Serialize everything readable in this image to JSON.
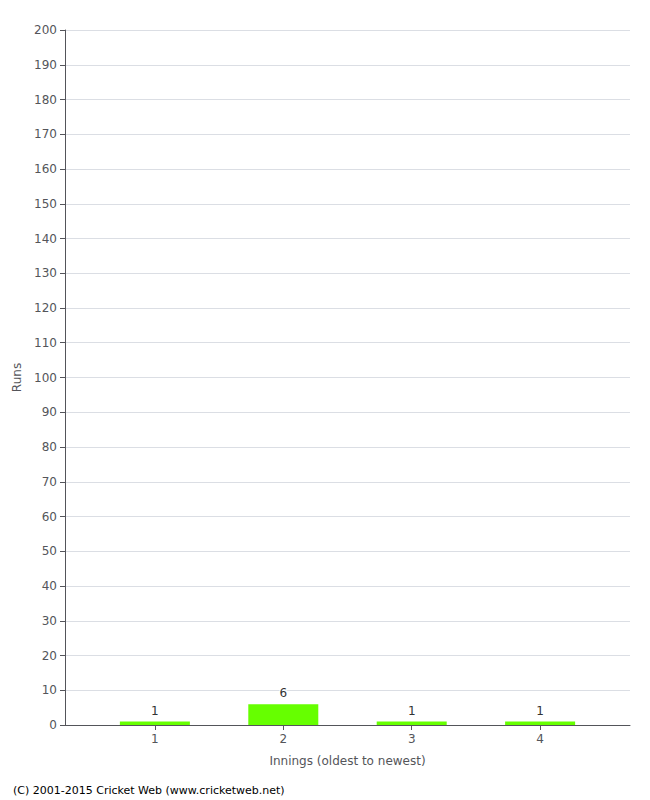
{
  "chart_data": {
    "type": "bar",
    "x": [
      1,
      2,
      3,
      4
    ],
    "values": [
      1,
      6,
      1,
      1
    ],
    "color": "#66ff00",
    "xlabel": "Innings (oldest to newest)",
    "ylabel": "Runs",
    "xlim": [
      0.3,
      4.7
    ],
    "xticks": [
      1,
      2,
      3,
      4
    ],
    "ylim": [
      0,
      200
    ],
    "yticks": [
      0,
      10,
      20,
      30,
      40,
      50,
      60,
      70,
      80,
      90,
      100,
      110,
      120,
      130,
      140,
      150,
      160,
      170,
      180,
      190,
      200
    ],
    "grid": true,
    "data_labels": true,
    "annotations": [
      "(C) 2001-2015 Cricket Web (www.cricketweb.net)"
    ]
  }
}
